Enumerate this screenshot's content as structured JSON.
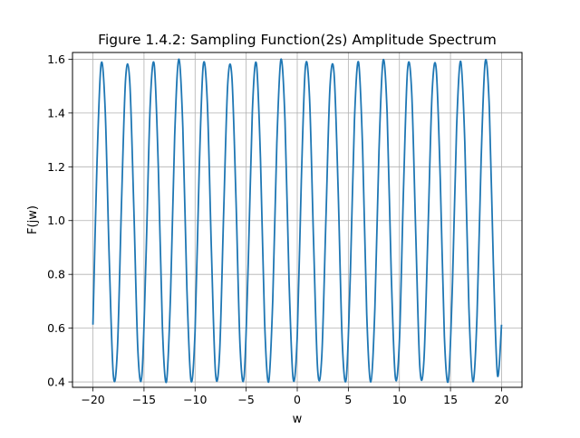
{
  "chart_data": {
    "type": "line",
    "title": "Figure 1.4.2: Sampling Function(2s) Amplitude Spectrum",
    "xlabel": "w",
    "ylabel": "F(jw)",
    "xlim": [
      -22,
      22
    ],
    "ylim": [
      0.38,
      1.625
    ],
    "xticks": [
      -20,
      -15,
      -10,
      -5,
      0,
      5,
      10,
      15,
      20
    ],
    "xtick_labels": [
      "−20",
      "−15",
      "−10",
      "−5",
      "0",
      "5",
      "10",
      "15",
      "20"
    ],
    "yticks": [
      0.4,
      0.6,
      0.8,
      1.0,
      1.2,
      1.4,
      1.6
    ],
    "ytick_labels": [
      "0.4",
      "0.6",
      "0.8",
      "1.0",
      "1.2",
      "1.4",
      "1.6"
    ],
    "grid": true,
    "series": [
      {
        "color": "#1f77b4",
        "x": [
          -20,
          -19.6,
          -19.2,
          -18.8,
          -18.4,
          -18,
          -17.6,
          -17.2,
          -16.8,
          -16.4,
          -16,
          -15.6,
          -15.2,
          -14.8,
          -14.4,
          -14,
          -13.6,
          -13.2,
          -12.8,
          -12.4,
          -12,
          -11.6,
          -11.2,
          -10.8,
          -10.4,
          -10,
          -9.6,
          -9.2,
          -8.8,
          -8.4,
          -8,
          -7.6,
          -7.2,
          -6.8,
          -6.4,
          -6,
          -5.6,
          -5.2,
          -4.8,
          -4.4,
          -4,
          -3.6,
          -3.2,
          -2.8,
          -2.4,
          -2,
          -1.6,
          -1.2,
          -0.8,
          -0.4,
          0,
          0.4,
          0.8,
          1.2,
          1.6,
          2,
          2.4,
          2.8,
          3.2,
          3.6,
          4,
          4.4,
          4.8,
          5.2,
          5.6,
          6,
          6.4,
          6.8,
          7.2,
          7.6,
          8,
          8.4,
          8.8,
          9.2,
          9.6,
          10,
          10.4,
          10.8,
          11.2,
          11.6,
          12,
          12.4,
          12.8,
          13.2,
          13.6,
          14,
          14.4,
          14.8,
          15.2,
          15.6,
          16,
          16.4,
          16.8,
          17.2,
          17.6,
          18,
          18.4,
          18.8,
          19.2,
          19.6,
          20
        ],
        "y": [
          0.613,
          1.216,
          1.582,
          1.411,
          0.854,
          0.424,
          0.525,
          1.069,
          1.528,
          1.52,
          1.05,
          0.517,
          0.428,
          0.87,
          1.425,
          1.58,
          1.199,
          0.604,
          0.401,
          0.728,
          1.312,
          1.6,
          1.346,
          0.745,
          0.405,
          0.59,
          1.184,
          1.578,
          1.437,
          0.886,
          0.433,
          0.509,
          1.034,
          1.511,
          1.535,
          1.085,
          0.535,
          0.42,
          0.838,
          1.4,
          1.584,
          1.231,
          0.629,
          0.4,
          0.702,
          1.285,
          1.599,
          1.373,
          0.774,
          0.411,
          0.57,
          1.15,
          1.572,
          1.459,
          0.919,
          0.444,
          0.494,
          0.997,
          1.493,
          1.549,
          1.119,
          0.554,
          0.413,
          0.805,
          1.374,
          1.589,
          1.265,
          0.654,
          0.4,
          0.675,
          1.257,
          1.595,
          1.397,
          0.804,
          0.418,
          0.552,
          1.117,
          1.562,
          1.479,
          0.952,
          0.456,
          0.48,
          0.962,
          1.474,
          1.564,
          1.153,
          0.571,
          0.407,
          0.774,
          1.346,
          1.592,
          1.293,
          0.68,
          0.401,
          0.648,
          1.227,
          1.591,
          1.421,
          0.835,
          0.425,
          0.613
        ]
      }
    ]
  }
}
